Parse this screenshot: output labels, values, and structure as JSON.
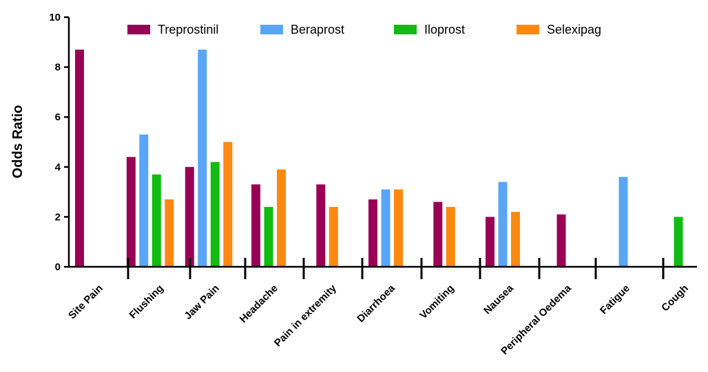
{
  "chart_data": {
    "type": "bar",
    "title": "",
    "xlabel": "",
    "ylabel": "Odds Ratio",
    "ylim": [
      0,
      10
    ],
    "yticks": [
      0,
      2,
      4,
      6,
      8,
      10
    ],
    "grid": false,
    "legend_position": "top",
    "categories": [
      "Site Pain",
      "Flushing",
      "Jaw Pain",
      "Headache",
      "Pain in extremity",
      "Diarrhoea",
      "Vomiting",
      "Nausea",
      "Peripheral Oedema",
      "Fatigue",
      "Cough"
    ],
    "series": [
      {
        "name": "Treprostinil",
        "color": "#990055",
        "values": [
          8.7,
          4.4,
          4.0,
          3.3,
          3.3,
          2.7,
          2.6,
          2.0,
          2.1,
          null,
          null
        ]
      },
      {
        "name": "Beraprost",
        "color": "#5aa5f5",
        "values": [
          null,
          5.3,
          8.7,
          null,
          null,
          3.1,
          null,
          3.4,
          null,
          3.6,
          null
        ]
      },
      {
        "name": "Iloprost",
        "color": "#11bb11",
        "values": [
          null,
          3.7,
          4.2,
          2.4,
          null,
          null,
          null,
          null,
          null,
          null,
          2.0
        ]
      },
      {
        "name": "Selexipag",
        "color": "#ff8811",
        "values": [
          null,
          2.7,
          5.0,
          3.9,
          2.4,
          3.1,
          2.4,
          2.2,
          null,
          null,
          null
        ]
      }
    ]
  }
}
